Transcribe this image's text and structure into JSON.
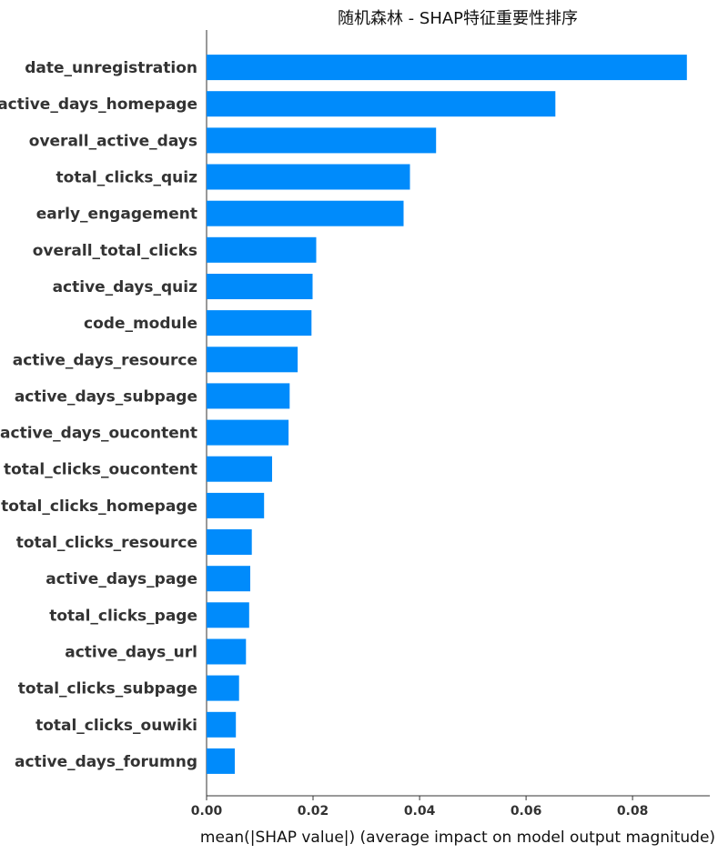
{
  "chart_data": {
    "type": "bar",
    "orientation": "horizontal",
    "title": "随机森林 - SHAP特征重要性排序",
    "xlabel": "mean(|SHAP value|) (average impact on model output magnitude)",
    "ylabel": "",
    "xlim": [
      0,
      0.0945
    ],
    "xticks": [
      0.0,
      0.02,
      0.04,
      0.06,
      0.08
    ],
    "xtick_labels": [
      "0.00",
      "0.02",
      "0.04",
      "0.06",
      "0.08"
    ],
    "grid": false,
    "legend": "none",
    "bar_color": "#008bfb",
    "categories": [
      "date_unregistration",
      "active_days_homepage",
      "overall_active_days",
      "total_clicks_quiz",
      "early_engagement",
      "overall_total_clicks",
      "active_days_quiz",
      "code_module",
      "active_days_resource",
      "active_days_subpage",
      "active_days_oucontent",
      "total_clicks_oucontent",
      "total_clicks_homepage",
      "total_clicks_resource",
      "active_days_page",
      "total_clicks_page",
      "active_days_url",
      "total_clicks_subpage",
      "total_clicks_ouwiki",
      "active_days_forumng"
    ],
    "values": [
      0.0902,
      0.0655,
      0.0431,
      0.0382,
      0.037,
      0.0206,
      0.0199,
      0.0197,
      0.0171,
      0.0156,
      0.0154,
      0.0123,
      0.0108,
      0.0085,
      0.0082,
      0.008,
      0.0074,
      0.0061,
      0.0055,
      0.0053
    ]
  }
}
